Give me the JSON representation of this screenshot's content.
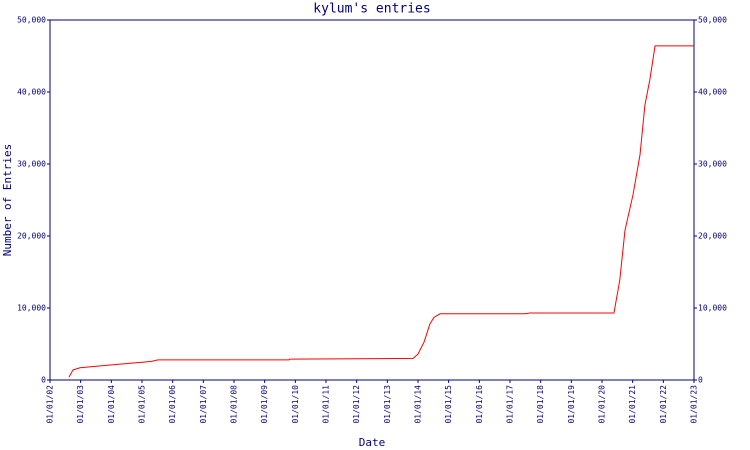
{
  "chart_data": {
    "type": "line",
    "title": "kylum's entries",
    "x_label": "Date",
    "y_label": "Number of Entries",
    "x": [
      2002.62,
      2002.75,
      2002.98,
      2003.47,
      2004.28,
      2005.1,
      2005.33,
      2005.52,
      2009.8,
      2009.82,
      2013.84,
      2014.0,
      2014.2,
      2014.39,
      2014.52,
      2014.72,
      2017.49,
      2017.65,
      2020.39,
      2020.58,
      2020.75,
      2021.01,
      2021.24,
      2021.4,
      2021.56,
      2021.73,
      2023.0
    ],
    "values": [
      400,
      1400,
      1700,
      1900,
      2200,
      2500,
      2600,
      2800,
      2800,
      2900,
      3000,
      3600,
      5300,
      7800,
      8700,
      9200,
      9200,
      9300,
      9300,
      13900,
      20800,
      25700,
      31300,
      38200,
      41700,
      46400,
      46400
    ],
    "color": "#ff0000",
    "xlim": [
      2002,
      2023
    ],
    "xticks": [
      {
        "value": 2002,
        "label": "01/01/02"
      },
      {
        "value": 2003,
        "label": "01/01/03"
      },
      {
        "value": 2004,
        "label": "01/01/04"
      },
      {
        "value": 2005,
        "label": "01/01/05"
      },
      {
        "value": 2006,
        "label": "01/01/06"
      },
      {
        "value": 2007,
        "label": "01/01/07"
      },
      {
        "value": 2008,
        "label": "01/01/08"
      },
      {
        "value": 2009,
        "label": "01/01/09"
      },
      {
        "value": 2010,
        "label": "01/01/10"
      },
      {
        "value": 2011,
        "label": "01/01/11"
      },
      {
        "value": 2012,
        "label": "01/01/12"
      },
      {
        "value": 2013,
        "label": "01/01/13"
      },
      {
        "value": 2014,
        "label": "01/01/14"
      },
      {
        "value": 2015,
        "label": "01/01/15"
      },
      {
        "value": 2016,
        "label": "01/01/16"
      },
      {
        "value": 2017,
        "label": "01/01/17"
      },
      {
        "value": 2018,
        "label": "01/01/18"
      },
      {
        "value": 2019,
        "label": "01/01/19"
      },
      {
        "value": 2020,
        "label": "01/01/20"
      },
      {
        "value": 2021,
        "label": "01/01/21"
      },
      {
        "value": 2022,
        "label": "01/01/22"
      },
      {
        "value": 2023,
        "label": "01/01/23"
      }
    ],
    "ylim": [
      0,
      50000
    ],
    "yticks": [
      0,
      {
        "value": 10000,
        "label": "10,000"
      },
      {
        "value": 20000,
        "label": "20,000"
      },
      {
        "value": 30000,
        "label": "30,000"
      },
      {
        "value": 40000,
        "label": "40,000"
      },
      {
        "value": 50000,
        "label": "50,000"
      }
    ],
    "right_axis": true
  }
}
